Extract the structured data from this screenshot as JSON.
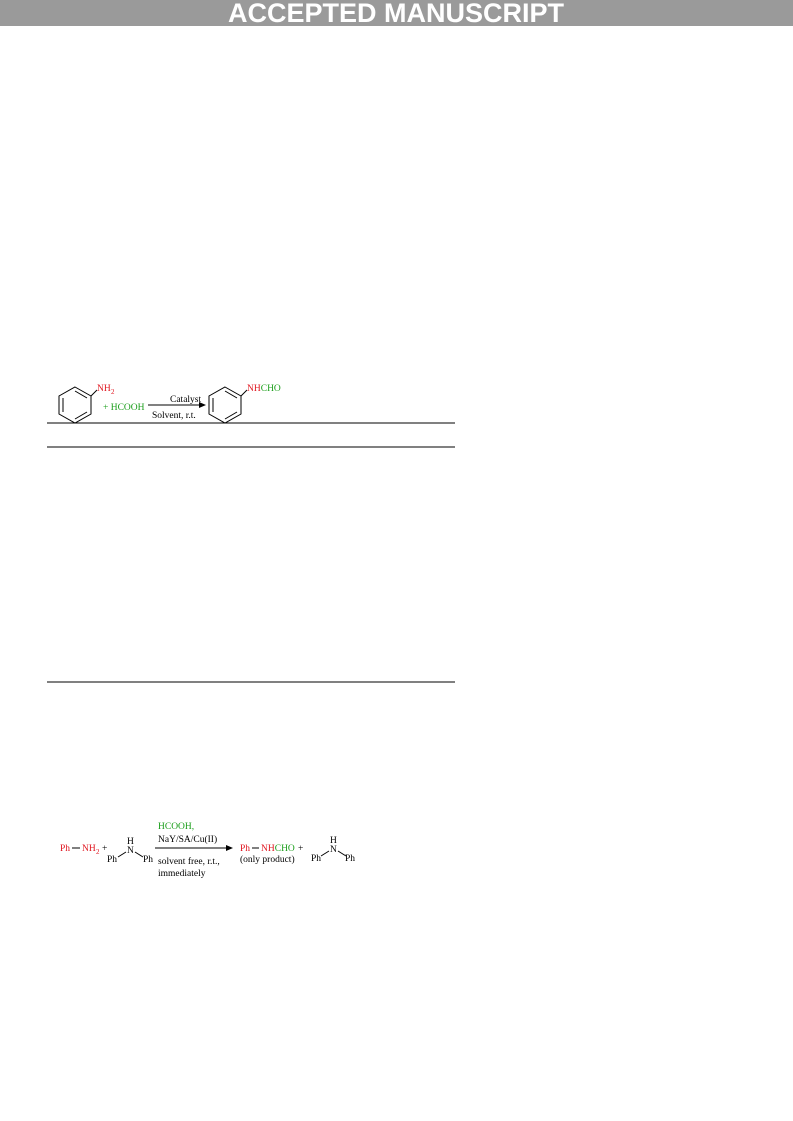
{
  "header": {
    "banner": "ACCEPTED MANUSCRIPT"
  },
  "scheme1": {
    "reactant_group": "NH",
    "reactant_group_sub": "2",
    "reagent": "+ HCOOH",
    "condition_top": "Catalyst",
    "condition_bottom": "Solvent, r.t.",
    "product_group_amine": "NH",
    "product_group_formyl": "CHO"
  },
  "scheme2": {
    "amine_ph": "Ph",
    "amine_group": "NH",
    "amine_sub": "2",
    "plus_1": "+",
    "dpa1_h": "H",
    "dpa1_n": "N",
    "dpa1_ph_left": "Ph",
    "dpa1_ph_right": "Ph",
    "reagent": "HCOOH,",
    "catalyst": "NaY/SA/Cu(II)",
    "condition_1": "solvent free, r.t.,",
    "condition_2": "immediately",
    "product_ph": "Ph",
    "product_amine": "NH",
    "product_formyl": "CHO",
    "plus_2": "+",
    "product_note": "(only product)",
    "dpa2_h": "H",
    "dpa2_n": "N",
    "dpa2_ph_left": "Ph",
    "dpa2_ph_right": "Ph"
  }
}
